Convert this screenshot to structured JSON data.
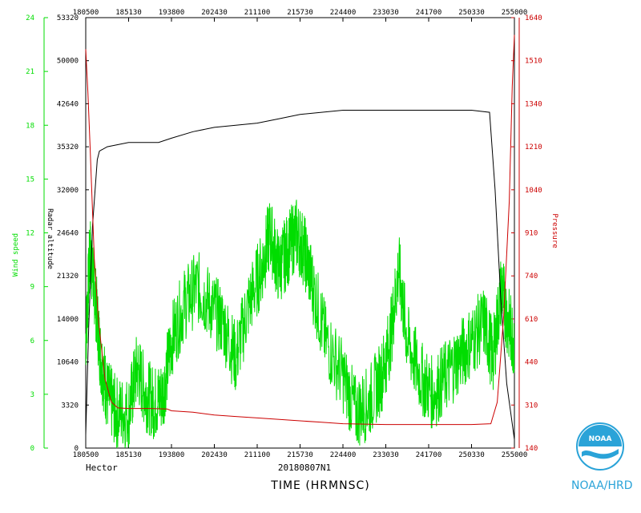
{
  "chart_data": {
    "type": "line",
    "title": "",
    "xlabel": "TIME (HRMNSC)",
    "x_ticks": [
      "180500",
      "185130",
      "193800",
      "202430",
      "211100",
      "215730",
      "224400",
      "233030",
      "241700",
      "250330",
      "255000"
    ],
    "x_range": [
      "180500",
      "255000"
    ],
    "left_axis_1": {
      "label": "Wind speed",
      "color": "#00dd00",
      "range": [
        0,
        24
      ],
      "ticks": [
        "0",
        "3",
        "6",
        "9",
        "12",
        "15",
        "18",
        "21",
        "24"
      ]
    },
    "left_axis_2": {
      "label": "Radar altitude",
      "color": "#000000",
      "ticks": [
        "0",
        "3320",
        "10640",
        "14000",
        "21320",
        "24640",
        "32000",
        "35320",
        "42640",
        "50000",
        "53320"
      ]
    },
    "right_axis": {
      "label": "Pressure",
      "color": "#cc0000",
      "range": [
        140,
        1640
      ],
      "ticks": [
        "140",
        "310",
        "440",
        "610",
        "740",
        "910",
        "1040",
        "1210",
        "1340",
        "1510",
        "1640"
      ]
    },
    "series": [
      {
        "name": "Radar altitude",
        "color": "#000000",
        "tick_index_points": [
          [
            0,
            0.3
          ],
          [
            0.07,
            2.8
          ],
          [
            0.16,
            5.2
          ],
          [
            0.27,
            6.7
          ],
          [
            0.32,
            6.9
          ],
          [
            0.5,
            7.0
          ],
          [
            1.0,
            7.1
          ],
          [
            1.2,
            7.1
          ],
          [
            1.7,
            7.1
          ],
          [
            2.0,
            7.2
          ],
          [
            2.5,
            7.35
          ],
          [
            3.0,
            7.45
          ],
          [
            4.0,
            7.55
          ],
          [
            4.5,
            7.65
          ],
          [
            5.0,
            7.75
          ],
          [
            5.5,
            7.8
          ],
          [
            6.0,
            7.85
          ],
          [
            7.0,
            7.85
          ],
          [
            8.0,
            7.85
          ],
          [
            8.0,
            7.85
          ],
          [
            9.0,
            7.85
          ],
          [
            9.42,
            7.8
          ],
          [
            9.55,
            6.0
          ],
          [
            9.68,
            3.5
          ],
          [
            9.82,
            1.5
          ],
          [
            10.0,
            0.2
          ]
        ]
      },
      {
        "name": "Pressure",
        "color": "#cc0000",
        "points": [
          [
            0,
            1530
          ],
          [
            0.05,
            1380
          ],
          [
            0.1,
            1200
          ],
          [
            0.15,
            1000
          ],
          [
            0.2,
            800
          ],
          [
            0.3,
            580
          ],
          [
            0.45,
            380
          ],
          [
            0.6,
            300
          ],
          [
            0.75,
            280
          ],
          [
            1.0,
            278
          ],
          [
            1.5,
            278
          ],
          [
            1.9,
            276
          ],
          [
            2.0,
            270
          ],
          [
            2.5,
            265
          ],
          [
            3.0,
            255
          ],
          [
            3.5,
            250
          ],
          [
            4.0,
            245
          ],
          [
            5.0,
            235
          ],
          [
            5.5,
            230
          ],
          [
            6.0,
            225
          ],
          [
            7.0,
            222
          ],
          [
            8.0,
            222
          ],
          [
            9.0,
            222
          ],
          [
            9.45,
            225
          ],
          [
            9.6,
            300
          ],
          [
            9.75,
            600
          ],
          [
            9.88,
            1000
          ],
          [
            9.95,
            1400
          ],
          [
            10.0,
            1580
          ]
        ]
      },
      {
        "name": "Wind speed",
        "color": "#00dd00",
        "anchors": [
          [
            0,
            6
          ],
          [
            0.1,
            11
          ],
          [
            0.2,
            9
          ],
          [
            0.35,
            5
          ],
          [
            0.5,
            3
          ],
          [
            0.7,
            2
          ],
          [
            1.0,
            2
          ],
          [
            1.2,
            4.5
          ],
          [
            1.4,
            3
          ],
          [
            1.6,
            2.5
          ],
          [
            1.8,
            3
          ],
          [
            2.0,
            6
          ],
          [
            2.3,
            8
          ],
          [
            2.6,
            9
          ],
          [
            2.9,
            8
          ],
          [
            3.2,
            7
          ],
          [
            3.5,
            5
          ],
          [
            3.8,
            8
          ],
          [
            4.1,
            10
          ],
          [
            4.3,
            12
          ],
          [
            4.5,
            10
          ],
          [
            4.7,
            11
          ],
          [
            4.9,
            12
          ],
          [
            5.1,
            11
          ],
          [
            5.3,
            9
          ],
          [
            5.6,
            6
          ],
          [
            6.0,
            4
          ],
          [
            6.3,
            2
          ],
          [
            6.6,
            2.5
          ],
          [
            6.9,
            4
          ],
          [
            7.1,
            6
          ],
          [
            7.3,
            10
          ],
          [
            7.5,
            6
          ],
          [
            7.8,
            4
          ],
          [
            8.1,
            3
          ],
          [
            8.4,
            4
          ],
          [
            8.7,
            5
          ],
          [
            9.0,
            6
          ],
          [
            9.3,
            7
          ],
          [
            9.5,
            5
          ],
          [
            9.7,
            9
          ],
          [
            9.85,
            7
          ],
          [
            10.0,
            6
          ]
        ]
      }
    ],
    "bottom_left_label": "Hector",
    "bottom_center_label": "20180807N1",
    "brand_text": "NOAA/HRD",
    "logo_text": "NOAA"
  }
}
